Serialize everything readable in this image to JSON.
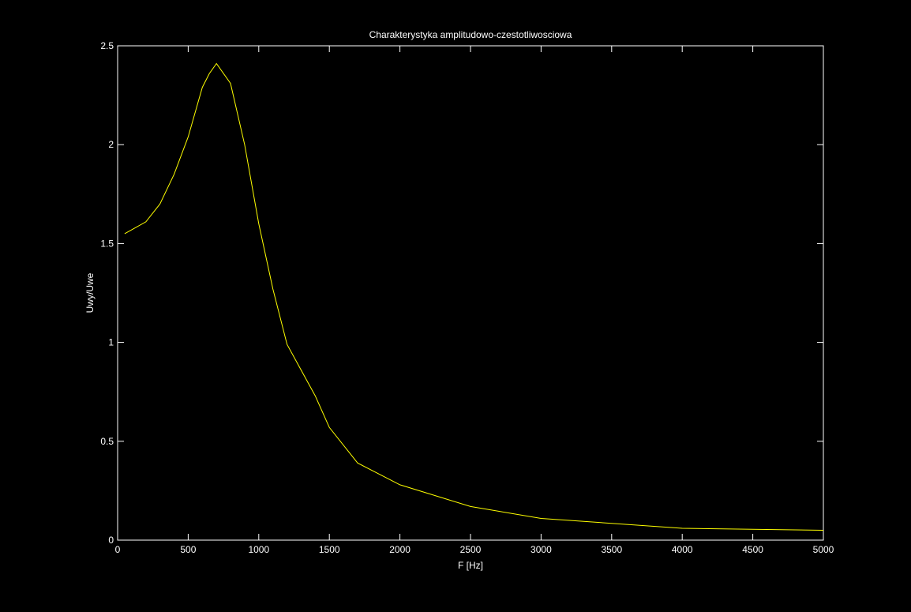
{
  "chart_data": {
    "type": "line",
    "title": "Charakterystyka amplitudowo-czestotliwosciowa",
    "xlabel": "F [Hz]",
    "ylabel": "Uwy/Uwe",
    "xlim": [
      0,
      5000
    ],
    "ylim": [
      0,
      2.5
    ],
    "xticks": [
      0,
      500,
      1000,
      1500,
      2000,
      2500,
      3000,
      3500,
      4000,
      4500,
      5000
    ],
    "xtick_labels": [
      "0",
      "500",
      "1000",
      "1500",
      "2000",
      "2500",
      "3000",
      "3500",
      "4000",
      "4500",
      "5000"
    ],
    "yticks": [
      0,
      0.5,
      1,
      1.5,
      2,
      2.5
    ],
    "ytick_labels": [
      "0",
      "0.5",
      "1",
      "1.5",
      "2",
      "2.5"
    ],
    "grid": false,
    "series": [
      {
        "color": "#ffff00",
        "x": [
          50,
          100,
          200,
          300,
          400,
          500,
          600,
          650,
          700,
          800,
          900,
          1000,
          1100,
          1200,
          1400,
          1500,
          1700,
          2000,
          2500,
          3000,
          4000,
          5000
        ],
        "y": [
          1.55,
          1.57,
          1.61,
          1.7,
          1.85,
          2.04,
          2.29,
          2.36,
          2.41,
          2.31,
          2.0,
          1.6,
          1.27,
          0.99,
          0.73,
          0.57,
          0.39,
          0.28,
          0.17,
          0.11,
          0.06,
          0.05
        ]
      }
    ],
    "colors": {
      "background": "#000000",
      "axes": "#ffffff",
      "line": "#ffff00"
    }
  }
}
